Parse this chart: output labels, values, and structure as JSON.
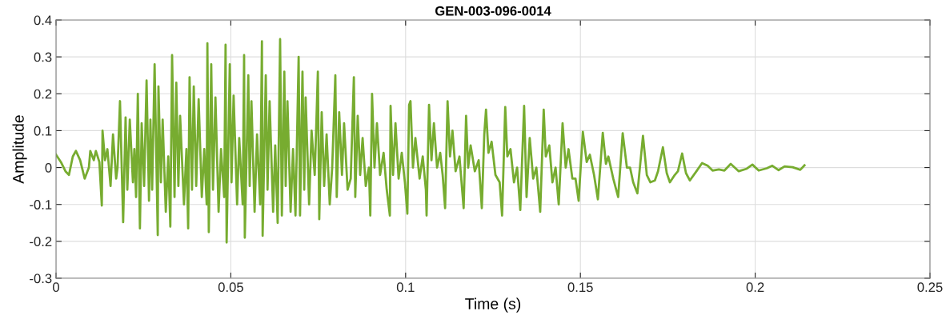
{
  "chart_data": {
    "type": "line",
    "title": "GEN-003-096-0014",
    "xlabel": "Time (s)",
    "ylabel": "Amplitude",
    "xlim": [
      0,
      0.25
    ],
    "xticks": [
      0,
      0.05,
      0.1,
      0.15,
      0.2,
      0.25
    ],
    "ylim": [
      -0.3,
      0.4
    ],
    "yticks": [
      -0.3,
      -0.2,
      -0.1,
      0,
      0.1,
      0.2,
      0.3,
      0.4
    ],
    "grid": true,
    "marker": "none",
    "line_style": "solid",
    "series": [
      {
        "color": "#77ac30",
        "x": [
          0,
          0.0014,
          0.0027,
          0.0037,
          0.0048,
          0.0057,
          0.0069,
          0.0082,
          0.0094,
          0.0098,
          0.0108,
          0.0114,
          0.0124,
          0.0131,
          0.0133,
          0.014,
          0.0147,
          0.0156,
          0.0163,
          0.0172,
          0.0176,
          0.0183,
          0.0192,
          0.0199,
          0.0204,
          0.0211,
          0.022,
          0.0224,
          0.0229,
          0.0234,
          0.024,
          0.0245,
          0.0252,
          0.0259,
          0.0266,
          0.027,
          0.0275,
          0.0282,
          0.0291,
          0.0293,
          0.03,
          0.0305,
          0.0314,
          0.0321,
          0.0327,
          0.0332,
          0.0339,
          0.0344,
          0.035,
          0.0355,
          0.0366,
          0.0373,
          0.0378,
          0.0382,
          0.0389,
          0.0394,
          0.0401,
          0.0408,
          0.0417,
          0.0424,
          0.0431,
          0.0433,
          0.0437,
          0.0444,
          0.0449,
          0.0456,
          0.0465,
          0.0472,
          0.0481,
          0.0485,
          0.0488,
          0.0497,
          0.0502,
          0.0508,
          0.0518,
          0.0524,
          0.0534,
          0.0538,
          0.054,
          0.055,
          0.0554,
          0.0559,
          0.0568,
          0.0575,
          0.0584,
          0.0589,
          0.0591,
          0.06,
          0.0605,
          0.0611,
          0.0621,
          0.0627,
          0.0634,
          0.0641,
          0.0646,
          0.0653,
          0.0657,
          0.0662,
          0.0671,
          0.0678,
          0.0685,
          0.0694,
          0.0698,
          0.0705,
          0.071,
          0.0714,
          0.0724,
          0.0731,
          0.074,
          0.0744,
          0.0749,
          0.0753,
          0.076,
          0.0767,
          0.0774,
          0.0783,
          0.079,
          0.0799,
          0.0803,
          0.081,
          0.0818,
          0.0824,
          0.0834,
          0.0843,
          0.0852,
          0.0856,
          0.0863,
          0.087,
          0.0877,
          0.0886,
          0.0895,
          0.0899,
          0.0904,
          0.0911,
          0.0918,
          0.0927,
          0.0937,
          0.0946,
          0.0955,
          0.0957,
          0.0964,
          0.0971,
          0.098,
          0.0989,
          0.0998,
          0.1005,
          0.101,
          0.1014,
          0.1021,
          0.1028,
          0.104,
          0.1049,
          0.1058,
          0.106,
          0.1067,
          0.1074,
          0.1081,
          0.109,
          0.1099,
          0.1106,
          0.1113,
          0.112,
          0.1127,
          0.1134,
          0.1143,
          0.1154,
          0.1166,
          0.1173,
          0.1179,
          0.1186,
          0.1198,
          0.1209,
          0.1218,
          0.1225,
          0.123,
          0.1237,
          0.1246,
          0.1257,
          0.1269,
          0.1276,
          0.1285,
          0.1291,
          0.13,
          0.131,
          0.1319,
          0.1328,
          0.1339,
          0.1346,
          0.1355,
          0.1365,
          0.1374,
          0.1385,
          0.1395,
          0.1401,
          0.1411,
          0.142,
          0.1429,
          0.1438,
          0.1449,
          0.1458,
          0.1466,
          0.1477,
          0.1486,
          0.1495,
          0.1507,
          0.1518,
          0.1527,
          0.1539,
          0.155,
          0.1564,
          0.1573,
          0.158,
          0.1594,
          0.1608,
          0.1621,
          0.1633,
          0.1642,
          0.1651,
          0.1663,
          0.1679,
          0.169,
          0.17,
          0.1713,
          0.1722,
          0.1736,
          0.1747,
          0.1756,
          0.177,
          0.1779,
          0.1791,
          0.1802,
          0.1813,
          0.1832,
          0.1848,
          0.1864,
          0.1878,
          0.1896,
          0.1912,
          0.193,
          0.1953,
          0.1976,
          0.1992,
          0.201,
          0.2033,
          0.2049,
          0.2067,
          0.2084,
          0.2107,
          0.2129,
          0.2141
        ],
        "values": [
          0.035,
          0.015,
          -0.01,
          -0.02,
          0.03,
          0.045,
          0.02,
          -0.03,
          0.0,
          0.045,
          0.02,
          0.045,
          0.015,
          -0.103,
          0.1,
          0.02,
          0.05,
          -0.05,
          0.09,
          -0.03,
          0.0,
          0.18,
          -0.148,
          0.136,
          -0.06,
          0.13,
          -0.04,
          0.05,
          -0.08,
          0.2,
          -0.165,
          0.12,
          -0.05,
          0.236,
          -0.09,
          0.13,
          -0.06,
          0.28,
          -0.183,
          0.22,
          -0.04,
          0.13,
          -0.12,
          0.03,
          -0.16,
          0.305,
          -0.08,
          0.23,
          -0.05,
          0.14,
          -0.1,
          0.05,
          -0.165,
          0.245,
          -0.06,
          0.22,
          -0.05,
          0.185,
          -0.08,
          0.05,
          -0.1,
          0.337,
          -0.175,
          0.28,
          -0.06,
          0.19,
          -0.12,
          0.05,
          -0.08,
          0.333,
          -0.203,
          0.28,
          -0.04,
          0.195,
          -0.1,
          0.08,
          -0.1,
          0.305,
          -0.19,
          0.25,
          -0.05,
          0.18,
          -0.12,
          0.09,
          -0.1,
          0.342,
          -0.185,
          0.25,
          -0.06,
          0.18,
          -0.12,
          0.06,
          -0.15,
          0.348,
          -0.13,
          0.26,
          -0.05,
          0.18,
          -0.12,
          0.05,
          -0.13,
          0.3,
          -0.13,
          0.26,
          -0.06,
          0.19,
          -0.1,
          0.1,
          -0.02,
          0.1,
          0.26,
          -0.14,
          0.15,
          -0.05,
          0.09,
          -0.1,
          0.0,
          0.25,
          -0.08,
          0.15,
          -0.02,
          0.12,
          -0.06,
          -0.03,
          0.245,
          -0.08,
          0.14,
          -0.02,
          0.08,
          -0.05,
          0.0,
          -0.13,
          0.2,
          0.0,
          0.12,
          -0.02,
          0.04,
          -0.06,
          -0.13,
          0.167,
          -0.02,
          0.12,
          -0.03,
          0.04,
          -0.04,
          -0.125,
          0.17,
          0.18,
          0.0,
          0.08,
          -0.03,
          0.03,
          -0.06,
          -0.13,
          0.17,
          0.02,
          0.12,
          0.0,
          0.04,
          -0.02,
          -0.11,
          0.18,
          0.03,
          0.1,
          -0.01,
          0.03,
          -0.11,
          0.14,
          0.0,
          0.06,
          -0.01,
          0.02,
          -0.11,
          0.09,
          0.157,
          0.04,
          0.07,
          -0.02,
          -0.04,
          -0.13,
          0.164,
          0.03,
          0.05,
          -0.04,
          0.0,
          -0.115,
          0.167,
          -0.08,
          0.08,
          -0.03,
          0.0,
          -0.12,
          0.157,
          0.03,
          0.06,
          -0.04,
          0.0,
          -0.1,
          0.12,
          0.0,
          0.05,
          -0.03,
          -0.03,
          -0.09,
          0.097,
          0.015,
          0.035,
          -0.02,
          -0.086,
          0.094,
          0.01,
          0.03,
          -0.03,
          -0.08,
          0.093,
          0.0,
          0.0,
          -0.04,
          -0.07,
          0.086,
          -0.02,
          -0.04,
          -0.035,
          -0.01,
          0.055,
          -0.015,
          -0.04,
          -0.02,
          -0.01,
          0.038,
          -0.015,
          -0.035,
          -0.01,
          0.012,
          0.005,
          -0.008,
          -0.005,
          -0.008,
          0.01,
          -0.01,
          -0.003,
          0.008,
          -0.008,
          -0.002,
          0.005,
          -0.007,
          0.003,
          0.001,
          -0.006,
          0.006
        ]
      }
    ]
  }
}
